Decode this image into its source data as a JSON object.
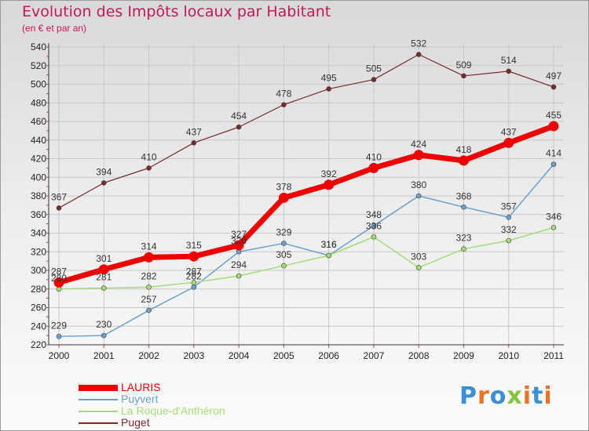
{
  "title": "Evolution des Impôts locaux par Habitant",
  "subtitle": "(en € et par an)",
  "chart_data": {
    "type": "line",
    "title": "Evolution des Impôts locaux par Habitant",
    "subtitle": "(en € et par an)",
    "xlabel": "",
    "ylabel": "",
    "ylim": [
      220,
      540
    ],
    "ytick_step": 20,
    "grid": true,
    "categories": [
      "2000",
      "2001",
      "2002",
      "2003",
      "2004",
      "2005",
      "2006",
      "2007",
      "2008",
      "2009",
      "2010",
      "2011"
    ],
    "series": [
      {
        "name": "LAURIS",
        "color": "#ee0000",
        "width": 7,
        "values": [
          287,
          301,
          314,
          315,
          327,
          378,
          392,
          410,
          424,
          418,
          437,
          455
        ]
      },
      {
        "name": "Puyvert",
        "color": "#6aa1cf",
        "width": 1.5,
        "values": [
          229,
          230,
          257,
          282,
          320,
          329,
          316,
          348,
          380,
          368,
          357,
          414
        ]
      },
      {
        "name": "La Roque-d'Anthéron",
        "color": "#a6db7a",
        "width": 1.5,
        "values": [
          280,
          281,
          282,
          287,
          294,
          305,
          316,
          336,
          303,
          323,
          332,
          346
        ]
      },
      {
        "name": "Puget",
        "color": "#7a2a2a",
        "width": 1.2,
        "values": [
          367,
          394,
          410,
          437,
          454,
          478,
          495,
          505,
          532,
          509,
          514,
          497
        ]
      }
    ],
    "legend_position": "bottom-left"
  },
  "legend": [
    {
      "name": "LAURIS",
      "color": "#ee0000"
    },
    {
      "name": "Puyvert",
      "color": "#6aa1cf"
    },
    {
      "name": "La Roque-d'Anthéron",
      "color": "#a6db7a"
    },
    {
      "name": "Puget",
      "color": "#7a2a2a"
    }
  ],
  "logo": {
    "text": "Proxiti",
    "letter_colors": [
      "#3a8fd6",
      "#e8742a",
      "#3a8fd6",
      "#86c440",
      "#e8742a",
      "#3a8fd6",
      "#e8742a"
    ]
  }
}
